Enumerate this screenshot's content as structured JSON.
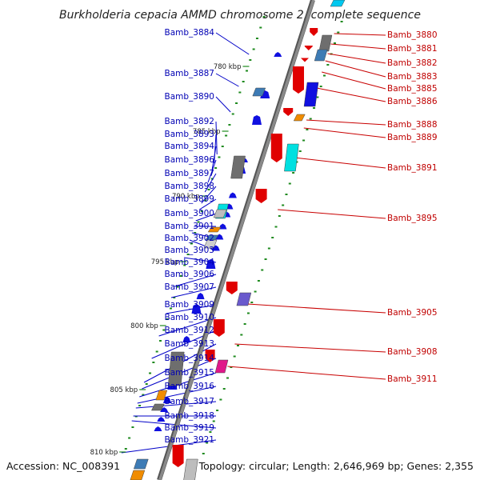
{
  "title": "Burkholderia cepacia AMMD chromosome 2, complete sequence",
  "footer": {
    "accession": "Accession: NC_008391",
    "summary": "Topology: circular; Length: 2,646,969 bp; Genes: 2,355"
  },
  "colors": {
    "backbone": "#8a8a8a",
    "left_label": "#0000b4",
    "right_label": "#c00000",
    "tick": "#1e8a1e",
    "gene_blue": "#1010e0",
    "gene_red": "#e00000",
    "gene_cyan": "#00e0e0",
    "gene_gray": "#6e6e6e",
    "gene_steel": "#3d7bb5",
    "gene_orange": "#f08c00",
    "gene_purple": "#6a5acd",
    "gene_magenta": "#e0188a"
  },
  "scale_labels": [
    "780 kbp",
    "785 kbp",
    "790 kbp",
    "795 kbp",
    "800 kbp",
    "805 kbp",
    "810 kbp"
  ],
  "left_genes": [
    "Bamb_3884",
    "Bamb_3887",
    "Bamb_3890",
    "Bamb_3892",
    "Bamb_3893",
    "Bamb_3894",
    "Bamb_3896",
    "Bamb_3897",
    "Bamb_3898",
    "Bamb_3899",
    "Bamb_3900",
    "Bamb_3901",
    "Bamb_3902",
    "Bamb_3903",
    "Bamb_3904",
    "Bamb_3906",
    "Bamb_3907",
    "Bamb_3909",
    "Bamb_3910",
    "Bamb_3912",
    "Bamb_3913",
    "Bamb_3914",
    "Bamb_3915",
    "Bamb_3916",
    "Bamb_3917",
    "Bamb_3918",
    "Bamb_3919",
    "Bamb_3921"
  ],
  "right_genes": [
    "Bamb_3880",
    "Bamb_3881",
    "Bamb_3882",
    "Bamb_3883",
    "Bamb_3885",
    "Bamb_3886",
    "Bamb_3888",
    "Bamb_3889",
    "Bamb_3891",
    "Bamb_3895",
    "Bamb_3905",
    "Bamb_3908",
    "Bamb_3911"
  ]
}
